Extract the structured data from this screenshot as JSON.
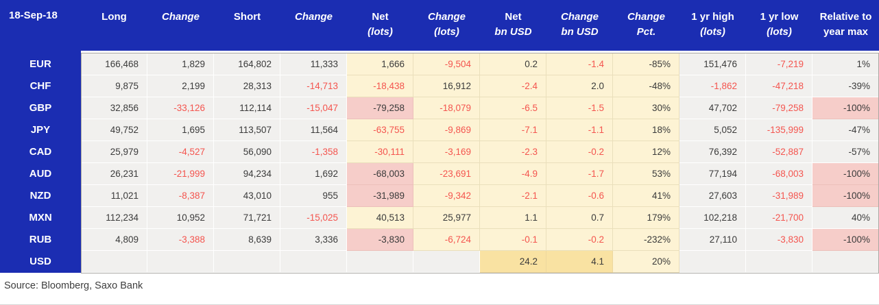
{
  "colors": {
    "header_bg": "#1b2db2",
    "cell_gray": "#f1f0ee",
    "cell_yellow": "#fdf3d4",
    "cell_yellow_dark": "#f9e2a2",
    "cell_pink": "#f6cdc9",
    "negative_text": "#f4544e",
    "positive_text": "#3a3a3a"
  },
  "chart_data": {
    "type": "table",
    "date_label": "18-Sep-18",
    "footer_source": "Source: Bloomberg, Saxo Bank",
    "column_keys": [
      "long",
      "long-change",
      "short",
      "short-change",
      "net-lots",
      "net-lots-change",
      "net-bn-usd",
      "net-bn-usd-change",
      "change-pct",
      "one-yr-high-lots",
      "one-yr-low-lots",
      "relative-to-year-max"
    ],
    "header_columns": [
      {
        "line1": "Long",
        "line2": "",
        "i1": false,
        "i2": false
      },
      {
        "line1": "Change",
        "line2": "",
        "i1": true,
        "i2": false
      },
      {
        "line1": "Short",
        "line2": "",
        "i1": false,
        "i2": false
      },
      {
        "line1": "Change",
        "line2": "",
        "i1": true,
        "i2": false
      },
      {
        "line1": "Net",
        "line2": "(lots)",
        "i1": false,
        "i2": true
      },
      {
        "line1": "Change",
        "line2": "(lots)",
        "i1": true,
        "i2": true
      },
      {
        "line1": "Net",
        "line2": "bn USD",
        "i1": false,
        "i2": true
      },
      {
        "line1": "Change",
        "line2": "bn USD",
        "i1": true,
        "i2": true
      },
      {
        "line1": "Change",
        "line2": "Pct.",
        "i1": true,
        "i2": true
      },
      {
        "line1": "1 yr high",
        "line2": "(lots)",
        "i1": false,
        "i2": true
      },
      {
        "line1": "1 yr low",
        "line2": "(lots)",
        "i1": false,
        "i2": true
      },
      {
        "line1": "Relative to",
        "line2": "year max",
        "i1": false,
        "i2": false
      }
    ],
    "rows": [
      {
        "currency": "EUR",
        "cells": [
          {
            "v": "166,468",
            "color": "black",
            "bg": "gray"
          },
          {
            "v": "1,829",
            "color": "black",
            "bg": "gray"
          },
          {
            "v": "164,802",
            "color": "black",
            "bg": "gray"
          },
          {
            "v": "11,333",
            "color": "black",
            "bg": "gray"
          },
          {
            "v": "1,666",
            "color": "black",
            "bg": "yellow"
          },
          {
            "v": "-9,504",
            "color": "red",
            "bg": "yellow"
          },
          {
            "v": "0.2",
            "color": "black",
            "bg": "yellow"
          },
          {
            "v": "-1.4",
            "color": "red",
            "bg": "yellow"
          },
          {
            "v": "-85%",
            "color": "black",
            "bg": "yellow"
          },
          {
            "v": "151,476",
            "color": "black",
            "bg": "gray"
          },
          {
            "v": "-7,219",
            "color": "red",
            "bg": "gray"
          },
          {
            "v": "1%",
            "color": "black",
            "bg": "gray"
          }
        ]
      },
      {
        "currency": "CHF",
        "cells": [
          {
            "v": "9,875",
            "color": "black",
            "bg": "gray"
          },
          {
            "v": "2,199",
            "color": "black",
            "bg": "gray"
          },
          {
            "v": "28,313",
            "color": "black",
            "bg": "gray"
          },
          {
            "v": "-14,713",
            "color": "red",
            "bg": "gray"
          },
          {
            "v": "-18,438",
            "color": "red",
            "bg": "yellow"
          },
          {
            "v": "16,912",
            "color": "black",
            "bg": "yellow"
          },
          {
            "v": "-2.4",
            "color": "red",
            "bg": "yellow"
          },
          {
            "v": "2.0",
            "color": "black",
            "bg": "yellow"
          },
          {
            "v": "-48%",
            "color": "black",
            "bg": "yellow"
          },
          {
            "v": "-1,862",
            "color": "red",
            "bg": "gray"
          },
          {
            "v": "-47,218",
            "color": "red",
            "bg": "gray"
          },
          {
            "v": "-39%",
            "color": "black",
            "bg": "gray"
          }
        ]
      },
      {
        "currency": "GBP",
        "cells": [
          {
            "v": "32,856",
            "color": "black",
            "bg": "gray"
          },
          {
            "v": "-33,126",
            "color": "red",
            "bg": "gray"
          },
          {
            "v": "112,114",
            "color": "black",
            "bg": "gray"
          },
          {
            "v": "-15,047",
            "color": "red",
            "bg": "gray"
          },
          {
            "v": "-79,258",
            "color": "black",
            "bg": "pink"
          },
          {
            "v": "-18,079",
            "color": "red",
            "bg": "yellow"
          },
          {
            "v": "-6.5",
            "color": "red",
            "bg": "yellow"
          },
          {
            "v": "-1.5",
            "color": "red",
            "bg": "yellow"
          },
          {
            "v": "30%",
            "color": "black",
            "bg": "yellow"
          },
          {
            "v": "47,702",
            "color": "black",
            "bg": "gray"
          },
          {
            "v": "-79,258",
            "color": "red",
            "bg": "gray"
          },
          {
            "v": "-100%",
            "color": "black",
            "bg": "pink"
          }
        ]
      },
      {
        "currency": "JPY",
        "cells": [
          {
            "v": "49,752",
            "color": "black",
            "bg": "gray"
          },
          {
            "v": "1,695",
            "color": "black",
            "bg": "gray"
          },
          {
            "v": "113,507",
            "color": "black",
            "bg": "gray"
          },
          {
            "v": "11,564",
            "color": "black",
            "bg": "gray"
          },
          {
            "v": "-63,755",
            "color": "red",
            "bg": "yellow"
          },
          {
            "v": "-9,869",
            "color": "red",
            "bg": "yellow"
          },
          {
            "v": "-7.1",
            "color": "red",
            "bg": "yellow"
          },
          {
            "v": "-1.1",
            "color": "red",
            "bg": "yellow"
          },
          {
            "v": "18%",
            "color": "black",
            "bg": "yellow"
          },
          {
            "v": "5,052",
            "color": "black",
            "bg": "gray"
          },
          {
            "v": "-135,999",
            "color": "red",
            "bg": "gray"
          },
          {
            "v": "-47%",
            "color": "black",
            "bg": "gray"
          }
        ]
      },
      {
        "currency": "CAD",
        "cells": [
          {
            "v": "25,979",
            "color": "black",
            "bg": "gray"
          },
          {
            "v": "-4,527",
            "color": "red",
            "bg": "gray"
          },
          {
            "v": "56,090",
            "color": "black",
            "bg": "gray"
          },
          {
            "v": "-1,358",
            "color": "red",
            "bg": "gray"
          },
          {
            "v": "-30,111",
            "color": "red",
            "bg": "yellow"
          },
          {
            "v": "-3,169",
            "color": "red",
            "bg": "yellow"
          },
          {
            "v": "-2.3",
            "color": "red",
            "bg": "yellow"
          },
          {
            "v": "-0.2",
            "color": "red",
            "bg": "yellow"
          },
          {
            "v": "12%",
            "color": "black",
            "bg": "yellow"
          },
          {
            "v": "76,392",
            "color": "black",
            "bg": "gray"
          },
          {
            "v": "-52,887",
            "color": "red",
            "bg": "gray"
          },
          {
            "v": "-57%",
            "color": "black",
            "bg": "gray"
          }
        ]
      },
      {
        "currency": "AUD",
        "cells": [
          {
            "v": "26,231",
            "color": "black",
            "bg": "gray"
          },
          {
            "v": "-21,999",
            "color": "red",
            "bg": "gray"
          },
          {
            "v": "94,234",
            "color": "black",
            "bg": "gray"
          },
          {
            "v": "1,692",
            "color": "black",
            "bg": "gray"
          },
          {
            "v": "-68,003",
            "color": "black",
            "bg": "pink"
          },
          {
            "v": "-23,691",
            "color": "red",
            "bg": "yellow"
          },
          {
            "v": "-4.9",
            "color": "red",
            "bg": "yellow"
          },
          {
            "v": "-1.7",
            "color": "red",
            "bg": "yellow"
          },
          {
            "v": "53%",
            "color": "black",
            "bg": "yellow"
          },
          {
            "v": "77,194",
            "color": "black",
            "bg": "gray"
          },
          {
            "v": "-68,003",
            "color": "red",
            "bg": "gray"
          },
          {
            "v": "-100%",
            "color": "black",
            "bg": "pink"
          }
        ]
      },
      {
        "currency": "NZD",
        "cells": [
          {
            "v": "11,021",
            "color": "black",
            "bg": "gray"
          },
          {
            "v": "-8,387",
            "color": "red",
            "bg": "gray"
          },
          {
            "v": "43,010",
            "color": "black",
            "bg": "gray"
          },
          {
            "v": "955",
            "color": "black",
            "bg": "gray"
          },
          {
            "v": "-31,989",
            "color": "black",
            "bg": "pink"
          },
          {
            "v": "-9,342",
            "color": "red",
            "bg": "yellow"
          },
          {
            "v": "-2.1",
            "color": "red",
            "bg": "yellow"
          },
          {
            "v": "-0.6",
            "color": "red",
            "bg": "yellow"
          },
          {
            "v": "41%",
            "color": "black",
            "bg": "yellow"
          },
          {
            "v": "27,603",
            "color": "black",
            "bg": "gray"
          },
          {
            "v": "-31,989",
            "color": "red",
            "bg": "gray"
          },
          {
            "v": "-100%",
            "color": "black",
            "bg": "pink"
          }
        ]
      },
      {
        "currency": "MXN",
        "cells": [
          {
            "v": "112,234",
            "color": "black",
            "bg": "gray"
          },
          {
            "v": "10,952",
            "color": "black",
            "bg": "gray"
          },
          {
            "v": "71,721",
            "color": "black",
            "bg": "gray"
          },
          {
            "v": "-15,025",
            "color": "red",
            "bg": "gray"
          },
          {
            "v": "40,513",
            "color": "black",
            "bg": "yellow"
          },
          {
            "v": "25,977",
            "color": "black",
            "bg": "yellow"
          },
          {
            "v": "1.1",
            "color": "black",
            "bg": "yellow"
          },
          {
            "v": "0.7",
            "color": "black",
            "bg": "yellow"
          },
          {
            "v": "179%",
            "color": "black",
            "bg": "yellow"
          },
          {
            "v": "102,218",
            "color": "black",
            "bg": "gray"
          },
          {
            "v": "-21,700",
            "color": "red",
            "bg": "gray"
          },
          {
            "v": "40%",
            "color": "black",
            "bg": "gray"
          }
        ]
      },
      {
        "currency": "RUB",
        "cells": [
          {
            "v": "4,809",
            "color": "black",
            "bg": "gray"
          },
          {
            "v": "-3,388",
            "color": "red",
            "bg": "gray"
          },
          {
            "v": "8,639",
            "color": "black",
            "bg": "gray"
          },
          {
            "v": "3,336",
            "color": "black",
            "bg": "gray"
          },
          {
            "v": "-3,830",
            "color": "black",
            "bg": "pink"
          },
          {
            "v": "-6,724",
            "color": "red",
            "bg": "yellow"
          },
          {
            "v": "-0.1",
            "color": "red",
            "bg": "yellow"
          },
          {
            "v": "-0.2",
            "color": "red",
            "bg": "yellow"
          },
          {
            "v": "-232%",
            "color": "black",
            "bg": "yellow"
          },
          {
            "v": "27,110",
            "color": "black",
            "bg": "gray"
          },
          {
            "v": "-3,830",
            "color": "red",
            "bg": "gray"
          },
          {
            "v": "-100%",
            "color": "black",
            "bg": "pink"
          }
        ]
      },
      {
        "currency": "USD",
        "cells": [
          {
            "v": "",
            "color": "black",
            "bg": "gray"
          },
          {
            "v": "",
            "color": "black",
            "bg": "gray"
          },
          {
            "v": "",
            "color": "black",
            "bg": "gray"
          },
          {
            "v": "",
            "color": "black",
            "bg": "gray"
          },
          {
            "v": "",
            "color": "black",
            "bg": "gray"
          },
          {
            "v": "",
            "color": "black",
            "bg": "gray"
          },
          {
            "v": "24.2",
            "color": "black",
            "bg": "yellow-dark"
          },
          {
            "v": "4.1",
            "color": "black",
            "bg": "yellow-dark"
          },
          {
            "v": "20%",
            "color": "black",
            "bg": "yellow"
          },
          {
            "v": "",
            "color": "black",
            "bg": "gray"
          },
          {
            "v": "",
            "color": "black",
            "bg": "gray"
          },
          {
            "v": "",
            "color": "black",
            "bg": "gray"
          }
        ]
      }
    ]
  }
}
